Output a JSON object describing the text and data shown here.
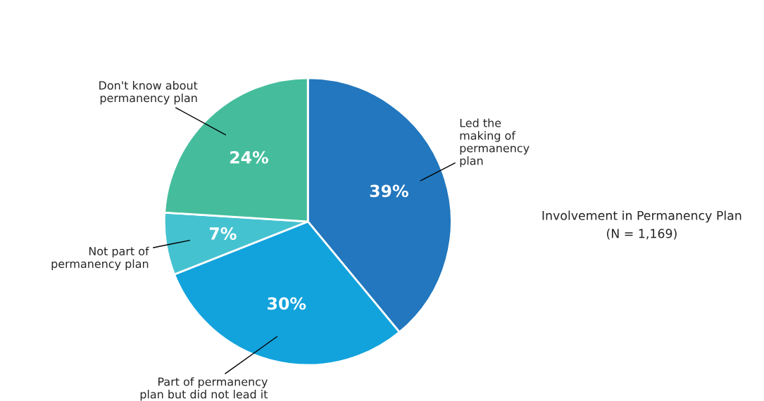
{
  "chart_data": {
    "type": "pie",
    "title": "Involvement in Permanency Plan",
    "subtitle": "(N = 1,169)",
    "categories": [
      "Led the\nmaking of\npermanency\nplan",
      "Part of permanency\nplan but did not lead it",
      "Not part of\npermanency plan",
      "Don't know about\npermanency plan"
    ],
    "values": [
      39,
      30,
      7,
      24
    ],
    "colors": [
      "#2277be",
      "#12a3dc",
      "#45c2d0",
      "#45bd9c"
    ],
    "value_labels": [
      "39%",
      "30%",
      "7%",
      "24%"
    ]
  }
}
